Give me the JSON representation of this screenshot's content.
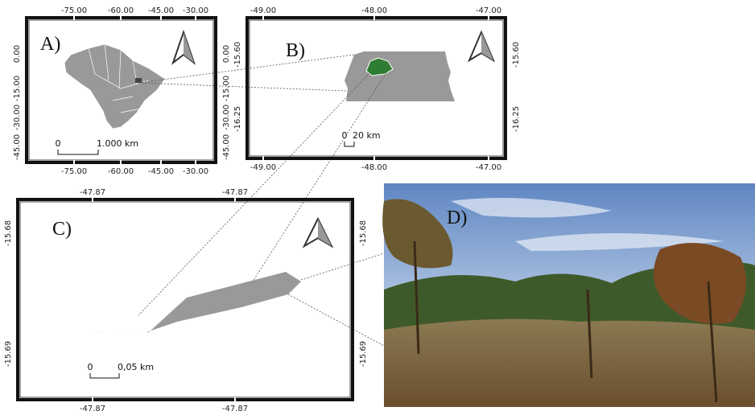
{
  "panels": {
    "A": {
      "label": "A)",
      "x_ticks": [
        "-75.00",
        "-60.00",
        "-45.00",
        "-30.00"
      ],
      "y_ticks": [
        "0.00",
        "-15.00",
        "-30.00",
        "-45.00"
      ],
      "scale": {
        "zero": "0",
        "distance": "1.000 km"
      }
    },
    "B": {
      "label": "B)",
      "x_ticks": [
        "-49.00",
        "-48.00",
        "-47.00"
      ],
      "y_ticks": [
        "-15.60",
        "-16.25"
      ],
      "scale": {
        "zero": "0",
        "distance": "20 km"
      }
    },
    "C": {
      "label": "C)",
      "x_ticks": [
        "-47.87",
        "-47.87"
      ],
      "y_ticks": [
        "-15.68",
        "-15.69"
      ],
      "scale": {
        "zero": "0",
        "distance": "0,05 km"
      }
    },
    "D": {
      "label": "D)"
    }
  }
}
